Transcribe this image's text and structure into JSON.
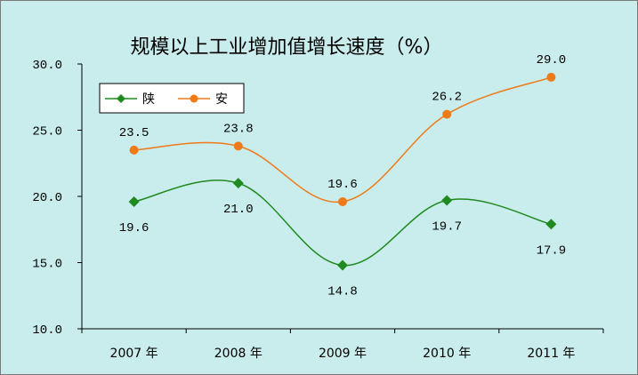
{
  "chart_data": {
    "type": "line",
    "title": "规模以上工业增加值增长速度（%）",
    "categories": [
      "2007 年",
      "2008 年",
      "2009 年",
      "2010 年",
      "2011 年"
    ],
    "series": [
      {
        "name": "陕",
        "values": [
          19.6,
          21.0,
          14.8,
          19.7,
          17.9
        ],
        "color": "#1f8a1f",
        "marker": "diamond",
        "labels": [
          "19.6",
          "21.0",
          "14.8",
          "19.7",
          "17.9"
        ]
      },
      {
        "name": "安",
        "values": [
          23.5,
          23.8,
          19.6,
          26.2,
          29.0
        ],
        "color": "#ee7a18",
        "marker": "circle",
        "labels": [
          "23.5",
          "23.8",
          "19.6",
          "26.2",
          "29.0"
        ]
      }
    ],
    "ylim": [
      10.0,
      30.0
    ],
    "yticks": [
      "10.0",
      "15.0",
      "20.0",
      "25.0",
      "30.0"
    ],
    "grid": false,
    "legend_position": "top-left"
  }
}
